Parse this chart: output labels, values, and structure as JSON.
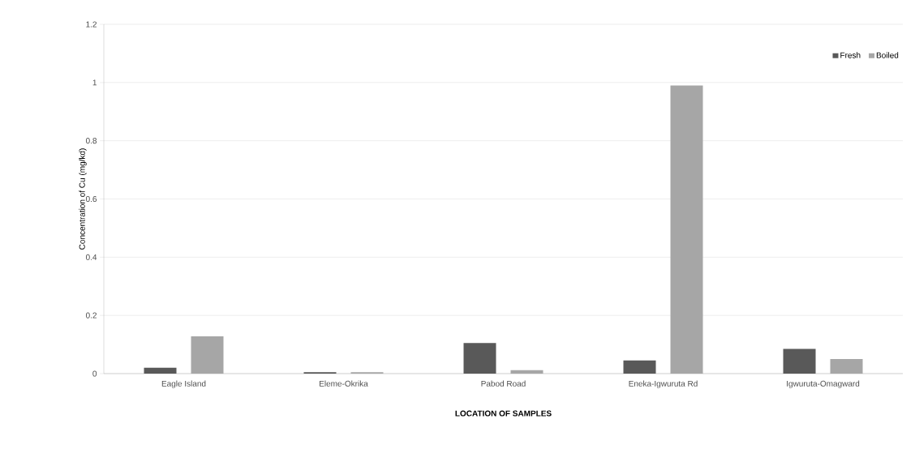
{
  "chart_data": {
    "type": "bar",
    "xlabel": "LOCATION OF SAMPLES",
    "ylabel": "Concentration of Cu (mg/kd)",
    "categories": [
      "Eagle Island",
      "Eleme-Okrika",
      "Pabod Road",
      "Eneka-Igwuruta Rd",
      "Igwuruta-Omagward"
    ],
    "series": [
      {
        "name": "Fresh",
        "color": "#595959",
        "values": [
          0.02,
          0.005,
          0.105,
          0.045,
          0.085
        ]
      },
      {
        "name": "Boiled",
        "color": "#a6a6a6",
        "values": [
          0.128,
          0.005,
          0.012,
          0.99,
          0.05
        ]
      }
    ],
    "ylim": [
      0,
      1.2
    ],
    "yticks": [
      0,
      0.2,
      0.4,
      0.6,
      0.8,
      1,
      1.2
    ],
    "grid": "y",
    "legend": "top right"
  }
}
